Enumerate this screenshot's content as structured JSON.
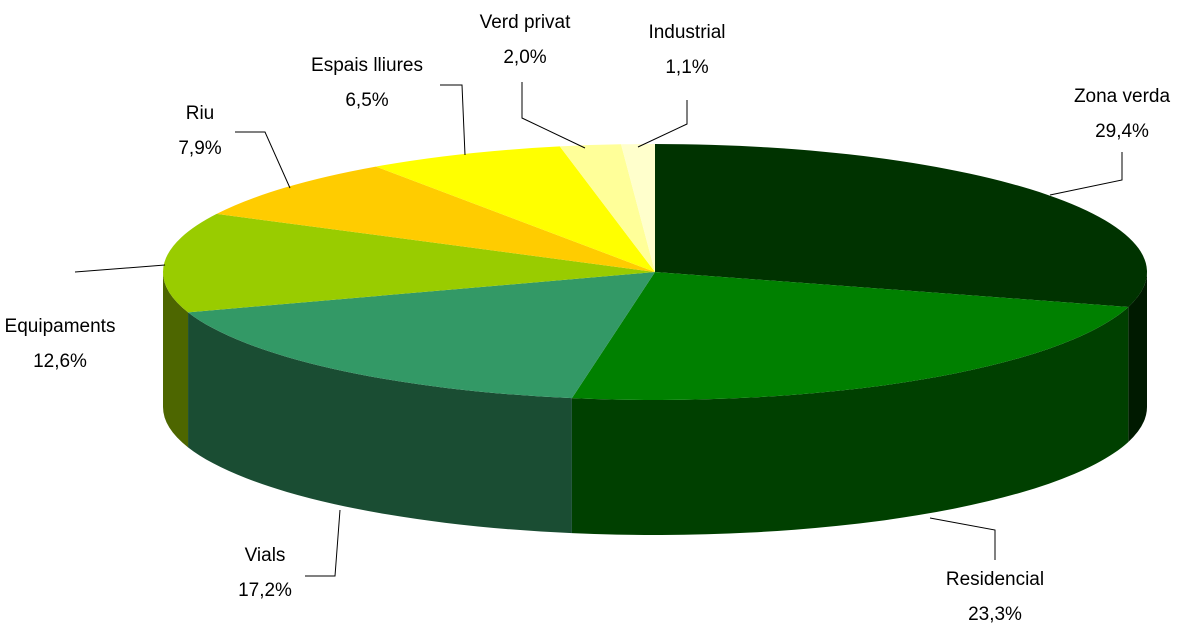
{
  "chart_data": {
    "type": "pie",
    "categories": [
      "Zona verda",
      "Residencial",
      "Vials",
      "Equipaments",
      "Riu",
      "Espais lliures",
      "Verd privat",
      "Industrial"
    ],
    "values": [
      29.4,
      23.3,
      17.2,
      12.6,
      7.9,
      6.5,
      2.0,
      1.1
    ],
    "value_labels": [
      "29,4%",
      "23,3%",
      "17,2%",
      "12,6%",
      "7,9%",
      "6,5%",
      "2,0%",
      "1,1%"
    ],
    "colors": [
      "#003300",
      "#008000",
      "#339966",
      "#99cc00",
      "#ffcc00",
      "#ffff00",
      "#ffff99",
      "#ffffcc"
    ]
  }
}
